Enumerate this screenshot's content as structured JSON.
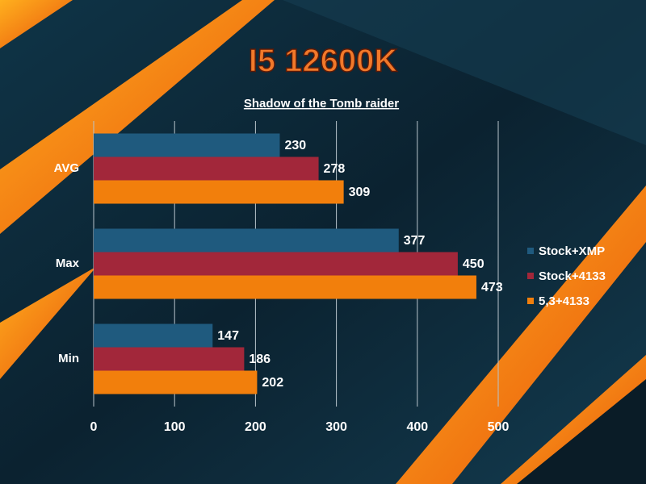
{
  "chart_data": {
    "type": "bar",
    "orientation": "horizontal",
    "title": "I5 12600K",
    "subtitle": "Shadow of the Tomb raider",
    "categories": [
      "AVG",
      "Max",
      "Min"
    ],
    "series": [
      {
        "name": "Stock+XMP",
        "color": "#1f5a7e",
        "values": [
          230,
          377,
          147
        ]
      },
      {
        "name": "Stock+4133",
        "color": "#a2273a",
        "values": [
          278,
          450,
          186
        ]
      },
      {
        "name": "5,3+4133",
        "color": "#f27f0c",
        "values": [
          309,
          473,
          202
        ]
      }
    ],
    "xlim": [
      0,
      500
    ],
    "xticks": [
      0,
      100,
      200,
      300,
      400,
      500
    ],
    "grid": true,
    "legend": "right"
  }
}
